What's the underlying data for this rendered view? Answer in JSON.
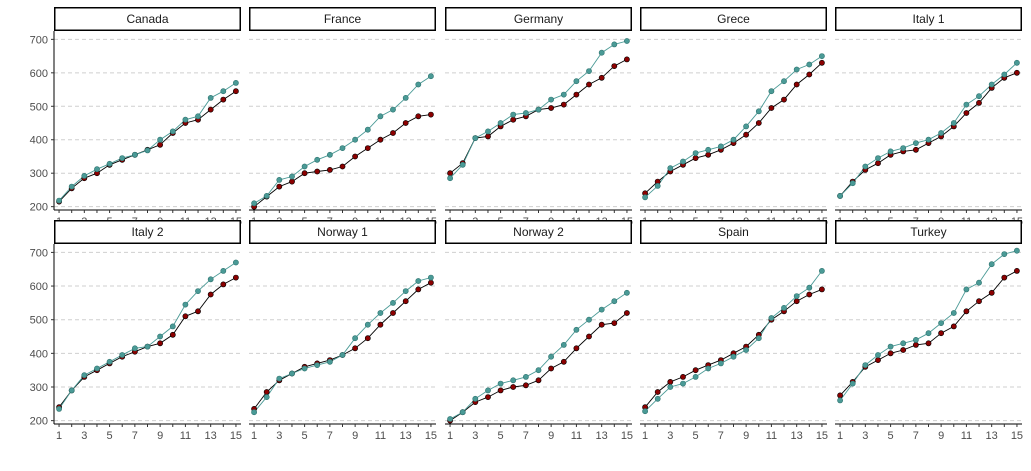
{
  "chart_data": {
    "type": "line",
    "layout": "facet-grid 2x5",
    "x": [
      1,
      2,
      3,
      4,
      5,
      6,
      7,
      8,
      9,
      10,
      11,
      12,
      13,
      14,
      15
    ],
    "x_ticks": [
      1,
      3,
      5,
      7,
      9,
      11,
      13,
      15
    ],
    "y_ticks": [
      200,
      300,
      400,
      500,
      600,
      700
    ],
    "ylim": [
      190,
      725
    ],
    "xlim": [
      0.6,
      15.4
    ],
    "grid": "horizontal dashed",
    "series_colors": [
      "#8b0000",
      "#4a9a96"
    ],
    "panels": [
      {
        "label": "Canada",
        "series": [
          {
            "values": [
              215,
              255,
              285,
              300,
              325,
              340,
              355,
              370,
              385,
              420,
              450,
              460,
              490,
              520,
              545
            ]
          },
          {
            "values": [
              218,
              260,
              292,
              312,
              328,
              345,
              355,
              368,
              400,
              425,
              460,
              470,
              525,
              545,
              570
            ]
          }
        ]
      },
      {
        "label": "France",
        "series": [
          {
            "values": [
              200,
              230,
              260,
              275,
              300,
              305,
              310,
              320,
              350,
              375,
              400,
              420,
              450,
              470,
              475
            ]
          },
          {
            "values": [
              210,
              232,
              280,
              290,
              320,
              340,
              355,
              375,
              400,
              430,
              470,
              490,
              525,
              565,
              590
            ]
          }
        ]
      },
      {
        "label": "Germany",
        "series": [
          {
            "values": [
              300,
              330,
              405,
              410,
              440,
              460,
              470,
              490,
              495,
              505,
              535,
              565,
              585,
              620,
              640
            ]
          },
          {
            "values": [
              285,
              325,
              405,
              425,
              450,
              475,
              480,
              490,
              520,
              535,
              575,
              605,
              660,
              685,
              695
            ]
          }
        ]
      },
      {
        "label": "Grece",
        "series": [
          {
            "values": [
              240,
              275,
              305,
              325,
              345,
              355,
              370,
              390,
              415,
              450,
              495,
              520,
              565,
              595,
              630
            ]
          },
          {
            "values": [
              228,
              262,
              315,
              335,
              360,
              370,
              380,
              400,
              440,
              485,
              545,
              575,
              610,
              625,
              650
            ]
          }
        ]
      },
      {
        "label": "Italy 1",
        "series": [
          {
            "values": [
              232,
              275,
              310,
              330,
              355,
              365,
              370,
              390,
              410,
              440,
              480,
              510,
              555,
              585,
              600
            ]
          },
          {
            "values": [
              232,
              270,
              320,
              345,
              365,
              375,
              390,
              400,
              420,
              450,
              505,
              530,
              565,
              595,
              630
            ]
          }
        ]
      },
      {
        "label": "Italy 2",
        "series": [
          {
            "values": [
              240,
              290,
              330,
              350,
              370,
              390,
              405,
              420,
              430,
              455,
              510,
              525,
              575,
              605,
              625
            ]
          },
          {
            "values": [
              235,
              290,
              335,
              355,
              375,
              395,
              415,
              420,
              450,
              480,
              545,
              585,
              620,
              645,
              670
            ]
          }
        ]
      },
      {
        "label": "Norway 1",
        "series": [
          {
            "values": [
              235,
              285,
              320,
              340,
              360,
              370,
              380,
              395,
              415,
              445,
              485,
              520,
              555,
              590,
              610
            ]
          },
          {
            "values": [
              225,
              270,
              325,
              340,
              355,
              365,
              375,
              395,
              445,
              485,
              520,
              550,
              585,
              615,
              625
            ]
          }
        ]
      },
      {
        "label": "Norway 2",
        "series": [
          {
            "values": [
              200,
              225,
              255,
              270,
              290,
              300,
              305,
              320,
              355,
              375,
              415,
              450,
              485,
              490,
              520
            ]
          },
          {
            "values": [
              205,
              225,
              265,
              290,
              310,
              320,
              330,
              350,
              390,
              425,
              470,
              500,
              530,
              555,
              580
            ]
          }
        ]
      },
      {
        "label": "Spain",
        "series": [
          {
            "values": [
              240,
              285,
              315,
              330,
              350,
              365,
              380,
              400,
              420,
              455,
              500,
              525,
              555,
              575,
              590
            ]
          },
          {
            "values": [
              228,
              265,
              300,
              310,
              330,
              355,
              370,
              390,
              410,
              445,
              505,
              535,
              570,
              595,
              645
            ]
          }
        ]
      },
      {
        "label": "Turkey",
        "series": [
          {
            "values": [
              275,
              315,
              360,
              380,
              400,
              410,
              425,
              430,
              460,
              480,
              525,
              555,
              580,
              625,
              645
            ]
          },
          {
            "values": [
              260,
              310,
              365,
              395,
              420,
              430,
              440,
              460,
              490,
              520,
              590,
              610,
              665,
              695,
              705
            ]
          }
        ]
      }
    ]
  }
}
